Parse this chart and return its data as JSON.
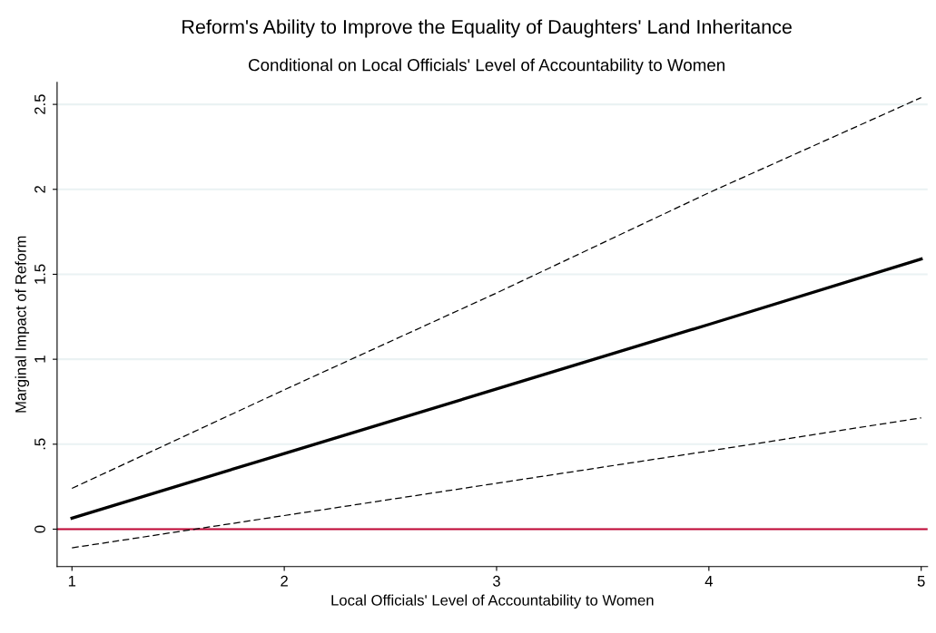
{
  "chart_data": {
    "type": "line",
    "title": "Reform's Ability to Improve the Equality of Daughters' Land Inheritance",
    "subtitle": "Conditional on Local Officials' Level of Accountability to Women",
    "xlabel": "Local Officials' Level of Accountability to Women",
    "ylabel": "Marginal Impact of Reform",
    "x": [
      1,
      2,
      3,
      4,
      5
    ],
    "series": [
      {
        "color": "#000000",
        "line_style": "solid",
        "values": [
          0.065,
          0.445,
          0.825,
          1.205,
          1.59
        ]
      },
      {
        "color": "#000000",
        "line_style": "dashed",
        "values": [
          0.24,
          0.82,
          1.39,
          1.98,
          2.54
        ]
      },
      {
        "color": "#000000",
        "line_style": "dashed",
        "values": [
          -0.11,
          0.08,
          0.27,
          0.46,
          0.655
        ]
      }
    ],
    "xlim": [
      0.93,
      5.03
    ],
    "ylim": [
      -0.22,
      2.63
    ],
    "xticks": [
      1,
      2,
      3,
      4,
      5
    ],
    "yticks": [
      0,
      {
        "value": 0.5,
        "label": ".5"
      },
      1,
      1.5,
      2,
      2.5
    ],
    "grid": "y",
    "ref_lines": [
      {
        "axis": "y",
        "value": 0,
        "color": "#c10534"
      }
    ],
    "marker": "none"
  }
}
